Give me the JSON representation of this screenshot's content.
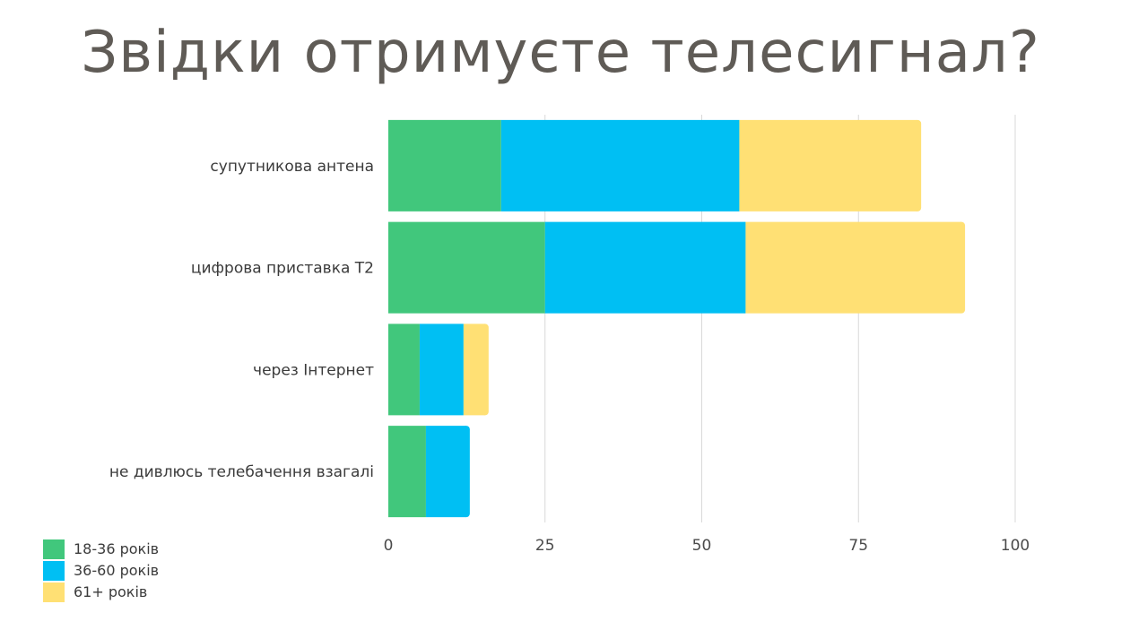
{
  "title": "Звідки отримуєте телесигнал?",
  "chart_data": {
    "type": "bar",
    "orientation": "horizontal",
    "stacked": true,
    "title": "Звідки отримуєте телесигнал?",
    "categories": [
      "супутникова антена",
      "цифрова приставка Т2",
      "через Інтернет",
      "не дивлюсь телебачення взагалі"
    ],
    "series": [
      {
        "name": "18-36 років",
        "color": "#41c77c",
        "values": [
          18,
          25,
          5,
          6
        ]
      },
      {
        "name": "36-60 років",
        "color": "#00bff3",
        "values": [
          38,
          32,
          7,
          7
        ]
      },
      {
        "name": "61+ років",
        "color": "#ffe074",
        "values": [
          29,
          35,
          4,
          0
        ]
      }
    ],
    "xlim": [
      0,
      100
    ],
    "xticks": [
      "0",
      "25",
      "50",
      "75",
      "100"
    ],
    "grid": true,
    "legend_position": "bottom-left"
  }
}
